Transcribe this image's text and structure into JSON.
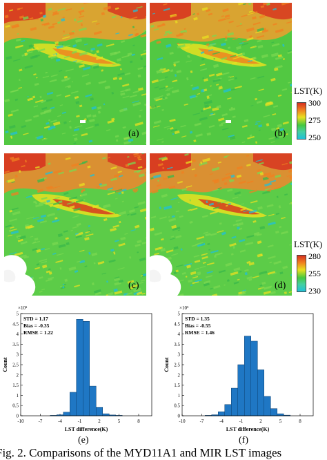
{
  "maps": [
    {
      "label": "(a)",
      "palette": "A",
      "seed": 11
    },
    {
      "label": "(b)",
      "palette": "A",
      "seed": 23
    },
    {
      "label": "(c)",
      "palette": "B",
      "seed": 37
    },
    {
      "label": "(d)",
      "palette": "B",
      "seed": 41
    }
  ],
  "colorbar_top": {
    "title": "LST(K)",
    "max": "300",
    "mid": "275",
    "min": "250"
  },
  "colorbar_bottom": {
    "title": "LST(K)",
    "max": "280",
    "mid": "255",
    "min": "230"
  },
  "colors": {
    "red": "#d7301f",
    "orange": "#f08020",
    "yellow": "#e8e020",
    "green": "#44c840",
    "lightgreen": "#7ad850",
    "cyan": "#20c0d8",
    "bar": "#1f77c4"
  },
  "chart_data": [
    {
      "type": "bar",
      "panel": "(e)",
      "title": "",
      "xlabel": "LST difference(K)",
      "ylabel": "Count",
      "y_exponent_label": "×10⁵",
      "stats": [
        "STD = 1.17",
        "Bias = -0.35",
        "RMSE = 1.22"
      ],
      "xticks": [
        "-10",
        "-7",
        "-4",
        "-1",
        "2",
        "5",
        "8"
      ],
      "yticks": [
        "0",
        "0.5",
        "1",
        "1.5",
        "2",
        "2.5",
        "3",
        "3.5",
        "4",
        "4.5",
        "5"
      ],
      "xlim": [
        -10,
        10
      ],
      "ylim": [
        0,
        5
      ],
      "bin_width": 1,
      "bins": [
        -5,
        -4,
        -3,
        -2,
        -1,
        0,
        1,
        2,
        3,
        4,
        5
      ],
      "values": [
        0.02,
        0.05,
        0.18,
        1.15,
        4.72,
        4.62,
        1.45,
        0.42,
        0.1,
        0.04,
        0.02
      ]
    },
    {
      "type": "bar",
      "panel": "(f)",
      "title": "",
      "xlabel": "LST difference(K)",
      "ylabel": "Count",
      "y_exponent_label": "×10⁵",
      "stats": [
        "STD = 1.35",
        "Bias = -0.55",
        "RMSE = 1.46"
      ],
      "xticks": [
        "-10",
        "-7",
        "-4",
        "-1",
        "2",
        "5",
        "8"
      ],
      "yticks": [
        "0",
        "0.5",
        "1",
        "1.5",
        "2",
        "2.5",
        "3",
        "3.5",
        "4",
        "4.5",
        "5"
      ],
      "xlim": [
        -10,
        10
      ],
      "ylim": [
        0,
        5
      ],
      "bin_width": 1,
      "bins": [
        -6,
        -5,
        -4,
        -3,
        -2,
        -1,
        0,
        1,
        2,
        3,
        4,
        5,
        6
      ],
      "values": [
        0.02,
        0.05,
        0.2,
        0.55,
        1.35,
        2.5,
        3.9,
        3.65,
        2.25,
        0.95,
        0.35,
        0.1,
        0.03
      ]
    }
  ],
  "caption": "Fig. 2. Comparisons of the MYD11A1 and MIR LST images"
}
